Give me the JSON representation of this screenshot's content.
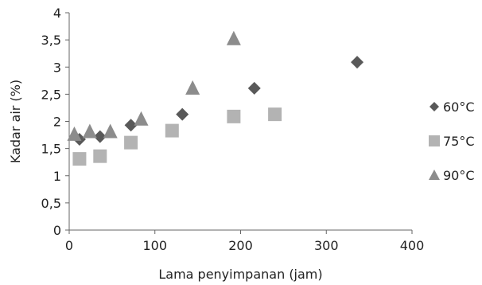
{
  "chart_data": {
    "type": "scatter",
    "xlabel": "Lama penyimpanan (jam)",
    "ylabel": "Kadar air (%)",
    "xlim": [
      0,
      400
    ],
    "ylim": [
      0,
      4
    ],
    "x_ticks": [
      "0",
      "100",
      "200",
      "300",
      "400"
    ],
    "y_ticks": [
      "0",
      "0,5",
      "1",
      "1,5",
      "2",
      "2,5",
      "3",
      "3,5",
      "4"
    ],
    "grid": false,
    "legend_position": "right",
    "series": [
      {
        "name": "60°C",
        "marker": "diamond",
        "color": "#595959",
        "points": [
          [
            12,
            1.67
          ],
          [
            36,
            1.72
          ],
          [
            72,
            1.93
          ],
          [
            132,
            2.13
          ],
          [
            216,
            2.61
          ],
          [
            336,
            3.09
          ]
        ]
      },
      {
        "name": "75°C",
        "marker": "square",
        "color": "#b3b3b3",
        "points": [
          [
            12,
            1.31
          ],
          [
            36,
            1.36
          ],
          [
            72,
            1.61
          ],
          [
            120,
            1.83
          ],
          [
            192,
            2.09
          ],
          [
            240,
            2.13
          ]
        ]
      },
      {
        "name": "90°C",
        "marker": "triangle",
        "color": "#8c8c8c",
        "points": [
          [
            6,
            1.76
          ],
          [
            24,
            1.81
          ],
          [
            48,
            1.81
          ],
          [
            84,
            2.04
          ],
          [
            144,
            2.61
          ],
          [
            192,
            3.52
          ]
        ]
      }
    ]
  }
}
